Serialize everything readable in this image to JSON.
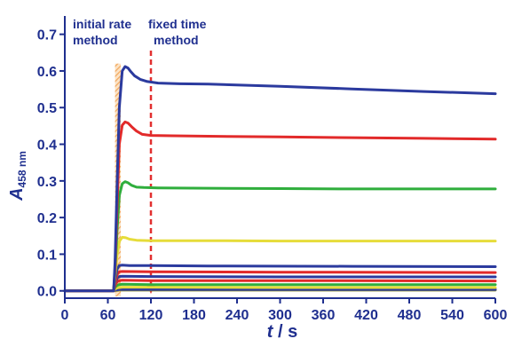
{
  "chart_data": {
    "type": "line",
    "title": "",
    "xlabel": {
      "main": "t",
      "unit": " / s"
    },
    "ylabel": {
      "main": "A",
      "sub": "458 nm"
    },
    "xlim": [
      0,
      600
    ],
    "ylim": [
      -0.02,
      0.75
    ],
    "xticks": [
      0,
      60,
      120,
      180,
      240,
      300,
      360,
      420,
      480,
      540,
      600
    ],
    "xtick_labels": [
      "0",
      "60",
      "120",
      "180",
      "240",
      "300",
      "360",
      "420",
      "480",
      "540",
      "600"
    ],
    "yticks": [
      0.0,
      0.1,
      0.2,
      0.3,
      0.4,
      0.5,
      0.6,
      0.7
    ],
    "ytick_labels": [
      "0.0",
      "0.1",
      "0.2",
      "0.3",
      "0.4",
      "0.5",
      "0.6",
      "0.7"
    ],
    "grid": false,
    "annotations": [
      {
        "id": "initial-rate",
        "lines": [
          "initial rate",
          "method"
        ],
        "x_range": [
          70,
          78
        ],
        "style": "hatched band",
        "color": "#f2a65a"
      },
      {
        "id": "fixed-time",
        "lines": [
          "fixed time",
          "method"
        ],
        "x": 120,
        "style": "dashed arrow down",
        "color": "#e23030"
      }
    ],
    "series": [
      {
        "color": "#2b3a9e",
        "x": [
          0,
          68,
          70,
          73,
          76,
          80,
          84,
          88,
          92,
          97,
          105,
          115,
          130,
          160,
          200,
          300,
          400,
          500,
          600
        ],
        "values": [
          0.0,
          0.0,
          0.08,
          0.3,
          0.5,
          0.6,
          0.612,
          0.608,
          0.598,
          0.587,
          0.577,
          0.571,
          0.567,
          0.565,
          0.564,
          0.558,
          0.551,
          0.544,
          0.538
        ]
      },
      {
        "color": "#e22a2a",
        "x": [
          0,
          68,
          70,
          73,
          76,
          80,
          84,
          88,
          93,
          100,
          108,
          120,
          150,
          200,
          300,
          400,
          500,
          600
        ],
        "values": [
          0.0,
          0.0,
          0.06,
          0.24,
          0.4,
          0.452,
          0.461,
          0.458,
          0.448,
          0.436,
          0.427,
          0.424,
          0.423,
          0.422,
          0.42,
          0.418,
          0.416,
          0.414
        ]
      },
      {
        "color": "#2fae3c",
        "x": [
          0,
          68,
          70,
          73,
          76,
          80,
          84,
          88,
          93,
          100,
          110,
          130,
          200,
          300,
          400,
          500,
          600
        ],
        "values": [
          0.0,
          0.0,
          0.05,
          0.17,
          0.26,
          0.292,
          0.298,
          0.295,
          0.288,
          0.283,
          0.282,
          0.281,
          0.28,
          0.279,
          0.278,
          0.278,
          0.278
        ]
      },
      {
        "color": "#e6dc3a",
        "x": [
          0,
          68,
          70,
          73,
          76,
          80,
          85,
          90,
          100,
          120,
          200,
          300,
          400,
          500,
          600
        ],
        "values": [
          0.0,
          0.0,
          0.04,
          0.1,
          0.135,
          0.146,
          0.145,
          0.141,
          0.138,
          0.137,
          0.137,
          0.136,
          0.136,
          0.136,
          0.136
        ]
      },
      {
        "color": "#2b3a9e",
        "x": [
          0,
          68,
          70,
          73,
          76,
          80,
          90,
          120,
          200,
          400,
          600
        ],
        "values": [
          0.0,
          0.0,
          0.03,
          0.06,
          0.069,
          0.07,
          0.069,
          0.069,
          0.068,
          0.067,
          0.066
        ]
      },
      {
        "color": "#e22a2a",
        "x": [
          0,
          68,
          70,
          73,
          76,
          80,
          120,
          300,
          600
        ],
        "values": [
          0.0,
          0.0,
          0.02,
          0.045,
          0.052,
          0.053,
          0.052,
          0.051,
          0.05
        ]
      },
      {
        "color": "#2b3a9e",
        "x": [
          0,
          68,
          70,
          73,
          76,
          80,
          120,
          300,
          600
        ],
        "values": [
          0.0,
          0.0,
          0.02,
          0.035,
          0.039,
          0.04,
          0.039,
          0.038,
          0.038
        ]
      },
      {
        "color": "#e22a2a",
        "x": [
          0,
          68,
          70,
          73,
          76,
          80,
          120,
          300,
          600
        ],
        "values": [
          0.0,
          0.0,
          0.015,
          0.025,
          0.028,
          0.029,
          0.028,
          0.028,
          0.027
        ]
      },
      {
        "color": "#2fae3c",
        "x": [
          0,
          68,
          70,
          73,
          76,
          80,
          120,
          300,
          600
        ],
        "values": [
          0.0,
          0.0,
          0.01,
          0.015,
          0.017,
          0.018,
          0.017,
          0.017,
          0.017
        ]
      },
      {
        "color": "#e6dc3a",
        "x": [
          0,
          68,
          70,
          73,
          76,
          80,
          120,
          300,
          600
        ],
        "values": [
          0.0,
          0.0,
          0.005,
          0.008,
          0.009,
          0.01,
          0.01,
          0.009,
          0.009
        ]
      },
      {
        "color": "#2b3a9e",
        "x": [
          0,
          68,
          70,
          73,
          76,
          80,
          120,
          300,
          600
        ],
        "values": [
          0.0,
          0.0,
          0.002,
          0.003,
          0.004,
          0.004,
          0.004,
          0.004,
          0.004
        ]
      },
      {
        "color": "#8a8f2a",
        "x": [
          0,
          68,
          70,
          73,
          76,
          80,
          120,
          300,
          600
        ],
        "values": [
          0.0,
          0.0,
          0.001,
          0.001,
          0.002,
          0.002,
          0.002,
          0.002,
          0.002
        ]
      }
    ],
    "colors": {
      "axis": "#1f2f8f",
      "text": "#1f2f8f",
      "band": "#f2a65a",
      "arrow": "#e23030"
    }
  }
}
